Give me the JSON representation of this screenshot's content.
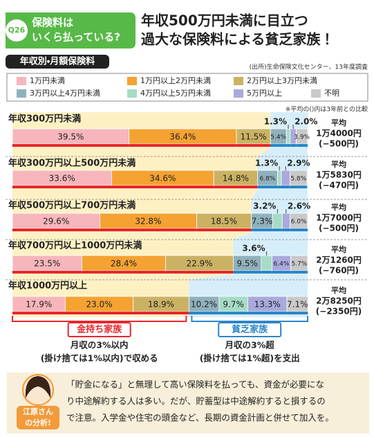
{
  "header": {
    "badge": "Q26",
    "question": [
      "保険料は",
      "いくら払っている?"
    ],
    "headline": [
      "年収500万円未満に目立つ",
      "過大な保険料による貧乏家族！"
    ]
  },
  "chart_data": {
    "type": "stacked-barh",
    "title": "年収別・月額保険料",
    "source": "(出所)生命保険文化センター、13年度調査",
    "note": "※平均の()内は3年前との比較",
    "xlim": [
      0,
      100
    ],
    "categories": [
      "年収300万円未満",
      "年収300万円以上500万円未満",
      "年収500万円以上700万円未満",
      "年収700万円以上1000万円未満",
      "年収1000万円以上"
    ],
    "series": [
      {
        "name": "1万円未満",
        "color": "#f6b6bb",
        "values": [
          39.5,
          33.6,
          29.6,
          23.5,
          17.9
        ],
        "value_labels": [
          "39.5%",
          "33.6%",
          "29.6%",
          "23.5%",
          "17.9%"
        ]
      },
      {
        "name": "1万円以上2万円未満",
        "color": "#f4a232",
        "values": [
          36.4,
          34.6,
          32.8,
          28.4,
          23.0
        ],
        "value_labels": [
          "36.4%",
          "34.6%",
          "32.8%",
          "28.4%",
          "23.0%"
        ]
      },
      {
        "name": "2万円以上3万円未満",
        "color": "#cbb263",
        "values": [
          11.5,
          14.8,
          18.5,
          22.9,
          18.9
        ],
        "value_labels": [
          "11.5%",
          "14.8%",
          "18.5%",
          "22.9%",
          "18.9%"
        ]
      },
      {
        "name": "3万円以上4万円未満",
        "color": "#8fb1bc",
        "values": [
          5.4,
          6.8,
          7.3,
          9.5,
          10.2
        ],
        "value_labels": [
          "5.4%",
          "6.8%",
          "7.3%",
          "9.5%",
          "10.2%"
        ]
      },
      {
        "name": "4万円以上5万円未満",
        "color": "#a6dcc6",
        "values": [
          1.3,
          1.3,
          3.2,
          3.6,
          9.7
        ],
        "value_labels": [
          "1.3%",
          "1.3%",
          "3.2%",
          "3.6%",
          "9.7%"
        ]
      },
      {
        "name": "5万円以上",
        "color": "#a9a9de",
        "values": [
          2.0,
          2.9,
          2.6,
          6.4,
          13.3
        ],
        "value_labels": [
          "2.0%",
          "2.9%",
          "2.6%",
          "6.4%",
          "13.3%"
        ]
      },
      {
        "name": "不明",
        "color": "#c9c9c9",
        "values": [
          3.9,
          5.8,
          6.0,
          5.7,
          7.1
        ],
        "value_labels": [
          "3.9%",
          "5.8%",
          "6.0%",
          "5.7%",
          "7.1%"
        ]
      }
    ],
    "average_label": "平均",
    "averages": [
      {
        "amount": "1万4000円",
        "change": "(−500円)"
      },
      {
        "amount": "1万5830円",
        "change": "(−470円)"
      },
      {
        "amount": "1万7000円",
        "change": "(−500円)"
      },
      {
        "amount": "2万1260円",
        "change": "(−760円)"
      },
      {
        "amount": "2万8250円",
        "change": "(−2350円)"
      }
    ],
    "groups": [
      {
        "label": "金持ち家族",
        "color": "#e8262c",
        "desc": [
          "月収の3%以内",
          "(掛け捨ては1%以内)で収める"
        ]
      },
      {
        "label": "貧乏家族",
        "color": "#2a86c7",
        "desc": [
          "月収の3%超",
          "(掛け捨ては1%超)を支出"
        ]
      }
    ]
  },
  "comment": {
    "person": [
      "江原さん",
      "の分析!"
    ],
    "lines": [
      "「貯金になる」と無理して高い保険料を払っても、資金が必要にな",
      "り中途解約する人は多い。だが、貯蓄型は中途解約すると損するの",
      "で注意。入学金や住宅の頭金など、長期の資金計画と併せて加入を。"
    ]
  }
}
